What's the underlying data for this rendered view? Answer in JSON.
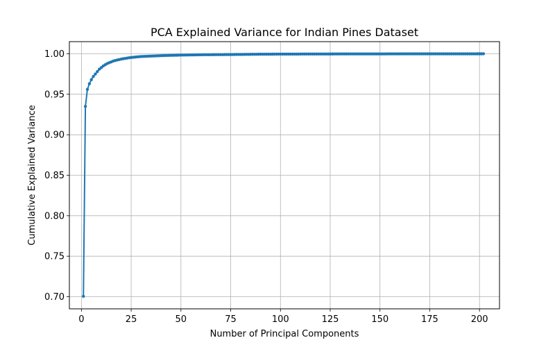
{
  "chart_data": {
    "type": "line",
    "title": "PCA Explained Variance for Indian Pines Dataset",
    "xlabel": "Number of Principal Components",
    "ylabel": "Cumulative Explained Variance",
    "xlim": [
      -6.05,
      210.05
    ],
    "ylim": [
      0.685,
      1.015
    ],
    "xticks": [
      0,
      25,
      50,
      75,
      100,
      125,
      150,
      175,
      200
    ],
    "xtick_labels": [
      "0",
      "25",
      "50",
      "75",
      "100",
      "125",
      "150",
      "175",
      "200"
    ],
    "yticks": [
      0.7,
      0.75,
      0.8,
      0.85,
      0.9,
      0.95,
      1.0
    ],
    "ytick_labels": [
      "0.70",
      "0.75",
      "0.80",
      "0.85",
      "0.90",
      "0.95",
      "1.00"
    ],
    "grid": true,
    "marker": "o",
    "series_color": "#1f77b4",
    "series": [
      {
        "x": [
          1,
          2,
          3,
          4,
          5,
          6,
          7,
          8,
          9,
          10,
          11,
          12,
          13,
          14,
          15,
          16,
          17,
          18,
          19,
          20,
          21,
          22,
          23,
          24,
          25,
          26,
          27,
          28,
          29,
          30,
          35,
          40,
          45,
          50,
          55,
          60,
          70,
          80,
          85,
          90,
          100,
          120,
          140,
          160,
          180,
          200,
          202
        ],
        "values": [
          0.7005,
          0.935,
          0.956,
          0.963,
          0.968,
          0.972,
          0.975,
          0.978,
          0.981,
          0.983,
          0.985,
          0.9865,
          0.988,
          0.989,
          0.99,
          0.991,
          0.9917,
          0.9923,
          0.9929,
          0.9934,
          0.9939,
          0.9943,
          0.9947,
          0.9951,
          0.9954,
          0.9957,
          0.996,
          0.9962,
          0.9964,
          0.9966,
          0.9972,
          0.9977,
          0.9981,
          0.9984,
          0.9986,
          0.9988,
          0.999,
          0.9992,
          0.99935,
          0.9995,
          0.9996,
          0.99975,
          0.99985,
          0.9999,
          0.99995,
          0.99999,
          1.0
        ]
      }
    ]
  }
}
